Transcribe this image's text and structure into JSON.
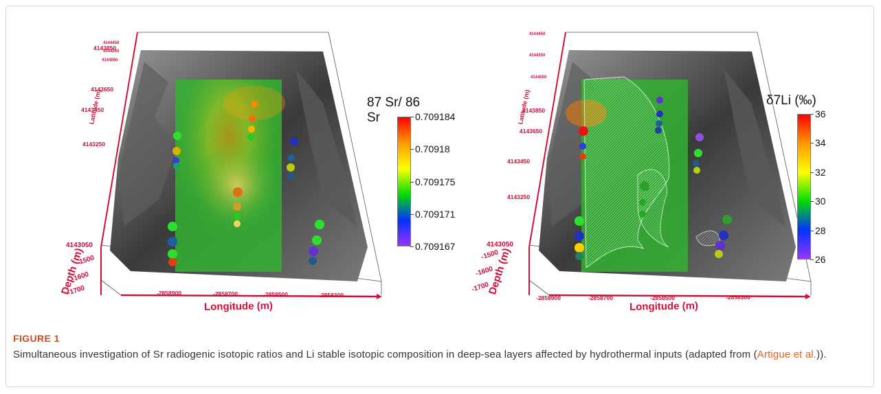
{
  "figure": {
    "label": "FIGURE 1",
    "caption_before": "Simultaneous investigation of Sr radiogenic isotopic ratios and Li stable isotopic composition in deep-sea layers affected by hydrothermal inputs (adapted from (",
    "caption_link": "Artigue et al.",
    "caption_after": "))."
  },
  "panels": [
    {
      "colorbar_title": "87 Sr/ 86 Sr",
      "colorbar_ticks": [
        "0.709184",
        "0.70918",
        "0.709175",
        "0.709171",
        "0.709167"
      ],
      "colorbar_colors": [
        "#ff0000",
        "#ff9900",
        "#ffff00",
        "#00dd00",
        "#0033ff",
        "#9933ff"
      ],
      "x_axis_title": "Longitude (m)",
      "y_axis_title": "Latitude (m)",
      "z_axis_title": "Depth (m)",
      "x_ticks": [
        "-2858900",
        "-2858700",
        "-2858500",
        "-2858300"
      ],
      "y_ticks": [
        "4143850",
        "4143650",
        "4143450",
        "4143250",
        "4143050"
      ],
      "y_ticks_faint": [
        "4144450",
        "4144250",
        "4144050"
      ],
      "z_ticks": [
        "-1500",
        "-1600",
        "-1700"
      ]
    },
    {
      "colorbar_title": "δ7Li (‰)",
      "colorbar_ticks": [
        "36",
        "34",
        "32",
        "30",
        "28",
        "26"
      ],
      "colorbar_colors": [
        "#ff0000",
        "#ff9900",
        "#ffff00",
        "#00dd00",
        "#0033ff",
        "#9933ff"
      ],
      "x_axis_title": "Longitude (m)",
      "y_axis_title": "Latitude (m)",
      "z_axis_title": "Depth (m)",
      "x_ticks": [
        "-2858900",
        "-2858700",
        "-2858500",
        "-2858300"
      ],
      "y_ticks": [
        "4143850",
        "4143650",
        "4143450",
        "4143250",
        "4143050"
      ],
      "y_ticks_faint": [
        "4144450",
        "4144250",
        "4144050"
      ],
      "z_ticks": [
        "-1500",
        "-1600",
        "-1700"
      ]
    }
  ]
}
